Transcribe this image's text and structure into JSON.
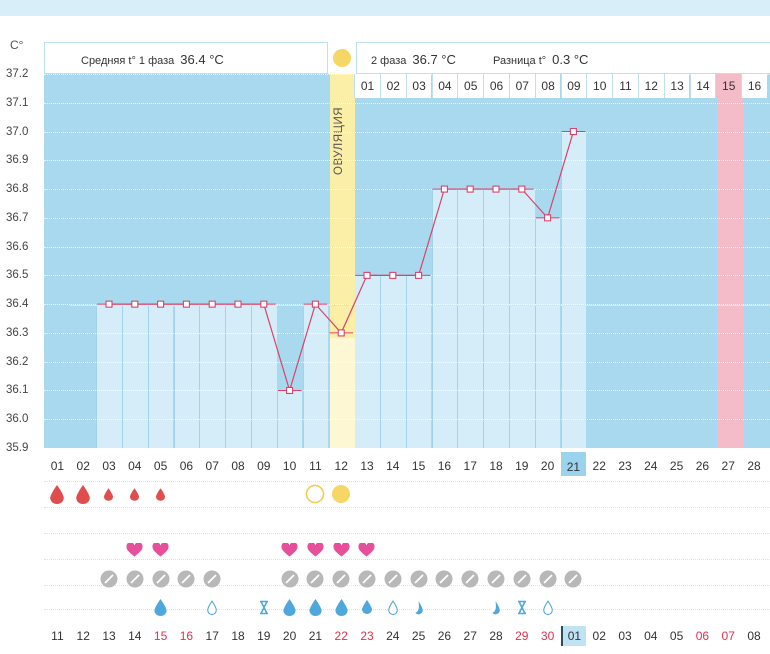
{
  "header": {
    "phase1_label": "Средняя t° 1 фаза",
    "phase1_value": "36.4 °C",
    "phase2_label": "2 фаза",
    "phase2_value": "36.7 °C",
    "diff_label": "Разница t°",
    "diff_value": "0.3 °C"
  },
  "axis": {
    "unit": "C°",
    "y_labels": [
      "37.2",
      "37.1",
      "37.0",
      "36.9",
      "36.8",
      "36.7",
      "36.6",
      "36.5",
      "36.4",
      "36.3",
      "36.2",
      "36.1",
      "36.0",
      "35.9"
    ]
  },
  "ovulation_label": "ОВУЛЯЦИЯ",
  "phase2_days": [
    "01",
    "02",
    "03",
    "04",
    "05",
    "06",
    "07",
    "08",
    "09",
    "10",
    "11",
    "12",
    "13",
    "14",
    "15",
    "16"
  ],
  "cycle_days": [
    "01",
    "02",
    "03",
    "04",
    "05",
    "06",
    "07",
    "08",
    "09",
    "10",
    "11",
    "12",
    "13",
    "14",
    "15",
    "16",
    "17",
    "18",
    "19",
    "20",
    "21",
    "22",
    "23",
    "24",
    "25",
    "26",
    "27",
    "28"
  ],
  "calendar_days": [
    "11",
    "12",
    "13",
    "14",
    "15",
    "16",
    "17",
    "18",
    "19",
    "20",
    "21",
    "22",
    "23",
    "24",
    "25",
    "26",
    "27",
    "28",
    "29",
    "30",
    "01",
    "02",
    "03",
    "04",
    "05",
    "06",
    "07",
    "08"
  ],
  "calendar_red_indices": [
    4,
    5,
    11,
    12,
    18,
    19,
    25,
    26
  ],
  "chart_data": {
    "type": "line",
    "x": [
      "01",
      "02",
      "03",
      "04",
      "05",
      "06",
      "07",
      "08",
      "09",
      "10",
      "11",
      "12",
      "13",
      "14",
      "15",
      "16",
      "17",
      "18",
      "19",
      "20",
      "21"
    ],
    "series": [
      {
        "values": [
          null,
          null,
          36.4,
          36.4,
          36.4,
          36.4,
          36.4,
          36.4,
          36.4,
          36.1,
          36.4,
          36.3,
          36.5,
          36.5,
          36.5,
          36.8,
          36.8,
          36.8,
          36.8,
          36.7,
          37.0
        ]
      }
    ],
    "ylim": [
      35.9,
      37.2
    ],
    "ylabel": "C°",
    "reference_line": 36.4,
    "ovulation_day": "12"
  },
  "colors": {
    "plot_bg": "#a9d9ef",
    "bar": "#d4edf9",
    "line": "#d9436b",
    "ovulation": "#fbeea7",
    "pink_column": "#f4bcc9",
    "selected_day": "#9bd3ec"
  },
  "symbols": {
    "bleeding": [
      {
        "day": 0,
        "size": "large"
      },
      {
        "day": 1,
        "size": "large"
      },
      {
        "day": 2,
        "size": "small"
      },
      {
        "day": 3,
        "size": "small"
      },
      {
        "day": 4,
        "size": "small"
      }
    ],
    "ovulation_marks": [
      {
        "day": 10,
        "type": "ring-icon"
      },
      {
        "day": 11,
        "type": "sun-icon"
      }
    ],
    "hearts": [
      3,
      4,
      9,
      10,
      11,
      12
    ],
    "pills": [
      2,
      3,
      4,
      5,
      6,
      9,
      10,
      11,
      12,
      13,
      14,
      15,
      16,
      17,
      18,
      19,
      20
    ],
    "mucus": [
      {
        "day": 4,
        "icon": "drop-filled-icon"
      },
      {
        "day": 6,
        "icon": "drop-outline-icon"
      },
      {
        "day": 8,
        "icon": "hourglass-icon"
      },
      {
        "day": 9,
        "icon": "drop-filled-icon"
      },
      {
        "day": 10,
        "icon": "drop-filled-icon"
      },
      {
        "day": 11,
        "icon": "drop-filled-icon"
      },
      {
        "day": 12,
        "icon": "drop-small-icon"
      },
      {
        "day": 13,
        "icon": "drop-outline-icon"
      },
      {
        "day": 14,
        "icon": "drop-half-icon"
      },
      {
        "day": 17,
        "icon": "drop-half-icon"
      },
      {
        "day": 18,
        "icon": "hourglass-icon"
      },
      {
        "day": 19,
        "icon": "drop-outline-icon"
      }
    ]
  }
}
